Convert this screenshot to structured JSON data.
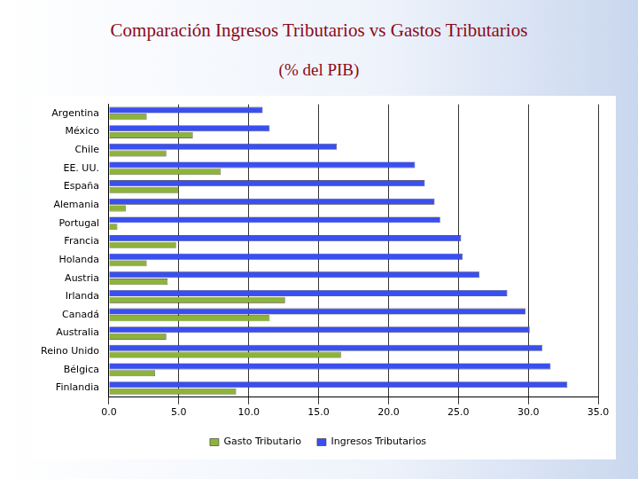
{
  "chart_data": {
    "type": "bar",
    "orientation": "horizontal",
    "title": "Comparación Ingresos Tributarios vs Gastos Tributarios",
    "subtitle": "(% del PIB)",
    "categories": [
      "Argentina",
      "México",
      "Chile",
      "EE. UU.",
      "España",
      "Alemania",
      "Portugal",
      "Francia",
      "Holanda",
      "Austria",
      "Irlanda",
      "Canadá",
      "Australia",
      "Reino Unido",
      "Bélgica",
      "Finlandia"
    ],
    "series": [
      {
        "name": "Gasto Tributario",
        "color": "#8db33a",
        "values": [
          2.7,
          6.0,
          4.1,
          8.0,
          5.0,
          1.2,
          0.6,
          4.8,
          2.7,
          4.2,
          12.6,
          11.5,
          4.1,
          16.6,
          3.3,
          9.1
        ]
      },
      {
        "name": "Ingresos Tributarios",
        "color": "#3a4ff0",
        "values": [
          11.0,
          11.5,
          16.3,
          21.9,
          22.6,
          23.3,
          23.7,
          25.2,
          25.3,
          26.5,
          28.5,
          29.8,
          30.1,
          31.0,
          31.6,
          32.8
        ]
      }
    ],
    "xlim": [
      0,
      35
    ],
    "xticks": [
      {
        "value": 0,
        "label": "0.0"
      },
      {
        "value": 5,
        "label": "5.0"
      },
      {
        "value": 10,
        "label": "10.0"
      },
      {
        "value": 15,
        "label": "15.0"
      },
      {
        "value": 20,
        "label": "20.0"
      },
      {
        "value": 25,
        "label": "25.0"
      },
      {
        "value": 30,
        "label": "30.0"
      },
      {
        "value": 35,
        "label": "35.0"
      }
    ],
    "grid": true,
    "legend": "bottom"
  }
}
